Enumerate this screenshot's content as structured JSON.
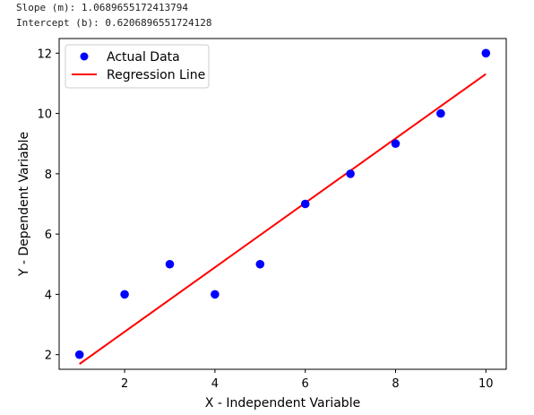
{
  "console": {
    "slope_line": "Slope (m): 1.0689655172413794",
    "intercept_line": "Intercept (b): 0.6206896551724128"
  },
  "chart_data": {
    "type": "scatter",
    "title": "",
    "xlabel": "X - Independent Variable",
    "ylabel": "Y - Dependent Variable",
    "xlim": [
      0.55,
      10.45
    ],
    "ylim": [
      1.515,
      12.485
    ],
    "xticks": [
      2,
      4,
      6,
      8,
      10
    ],
    "yticks": [
      2,
      4,
      6,
      8,
      10,
      12
    ],
    "grid": false,
    "legend_position": "top-left",
    "series": [
      {
        "name": "Actual Data",
        "kind": "scatter",
        "color": "#0000ff",
        "x": [
          1,
          2,
          3,
          4,
          5,
          6,
          7,
          8,
          9,
          10
        ],
        "y": [
          2,
          4,
          5,
          4,
          5,
          7,
          8,
          9,
          10,
          12
        ]
      },
      {
        "name": "Regression Line",
        "kind": "line",
        "color": "#ff0000",
        "slope": 1.0689655172413794,
        "intercept": 0.6206896551724128,
        "x": [
          1,
          10
        ],
        "y": [
          1.6896551724,
          11.3103448276
        ]
      }
    ]
  }
}
